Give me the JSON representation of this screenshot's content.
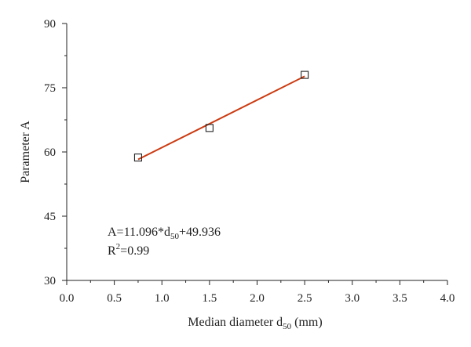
{
  "chart_data": {
    "type": "scatter",
    "xlabel_main": "Median diameter d",
    "xlabel_sub": "50",
    "xlabel_unit": " (mm)",
    "ylabel": "Parameter A",
    "xlim": [
      0,
      4
    ],
    "ylim": [
      30,
      90
    ],
    "xticks": [
      "0.0",
      "0.5",
      "1.0",
      "1.5",
      "2.0",
      "2.5",
      "3.0",
      "3.5",
      "4.0"
    ],
    "yticks": [
      "30",
      "45",
      "60",
      "75",
      "90"
    ],
    "grid": false,
    "points": [
      {
        "x": 0.75,
        "y": 58.7
      },
      {
        "x": 1.5,
        "y": 65.6
      },
      {
        "x": 2.5,
        "y": 78.0
      }
    ],
    "fit": {
      "slope": 11.096,
      "intercept": 49.936,
      "x_range": [
        0.75,
        2.5
      ],
      "color": "#cc3a10"
    },
    "annotation": {
      "eq_prefix": "A=11.096*d",
      "eq_sub": "50",
      "eq_suffix": "+49.936",
      "r2_prefix": "R",
      "r2_sup": "2",
      "r2_suffix": "=0.99"
    }
  }
}
